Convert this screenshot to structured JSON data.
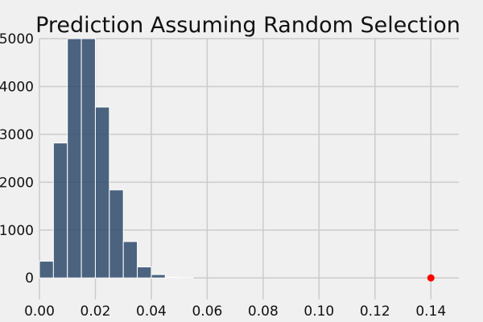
{
  "chart_data": {
    "type": "bar",
    "title": "Prediction Assuming Random Selection",
    "xlabel": "",
    "ylabel": "",
    "xlim": [
      0,
      0.15
    ],
    "ylim": [
      -450,
      5000
    ],
    "grid": true,
    "x_ticks": [
      0.0,
      0.02,
      0.04,
      0.06,
      0.08,
      0.1,
      0.12,
      0.14
    ],
    "x_tick_labels": [
      "0.00",
      "0.02",
      "0.04",
      "0.06",
      "0.08",
      "0.10",
      "0.12",
      "0.14"
    ],
    "y_ticks": [
      0,
      1000,
      2000,
      3000,
      4000,
      5000
    ],
    "y_tick_labels": [
      "0",
      "1000",
      "2000",
      "3000",
      "4000",
      "5000"
    ],
    "bar_color": "#2e4a6b",
    "bins": [
      {
        "left": 0.0,
        "right": 0.005,
        "value": 350
      },
      {
        "left": 0.005,
        "right": 0.01,
        "value": 2820
      },
      {
        "left": 0.01,
        "right": 0.015,
        "value": 5000
      },
      {
        "left": 0.015,
        "right": 0.02,
        "value": 5000
      },
      {
        "left": 0.02,
        "right": 0.025,
        "value": 3570
      },
      {
        "left": 0.025,
        "right": 0.03,
        "value": 1840
      },
      {
        "left": 0.03,
        "right": 0.035,
        "value": 760
      },
      {
        "left": 0.035,
        "right": 0.04,
        "value": 230
      },
      {
        "left": 0.04,
        "right": 0.045,
        "value": 70
      },
      {
        "left": 0.045,
        "right": 0.05,
        "value": 15
      },
      {
        "left": 0.05,
        "right": 0.055,
        "value": 5
      }
    ],
    "marker": {
      "x": 0.14,
      "y": 0,
      "color": "#ff0000"
    }
  }
}
